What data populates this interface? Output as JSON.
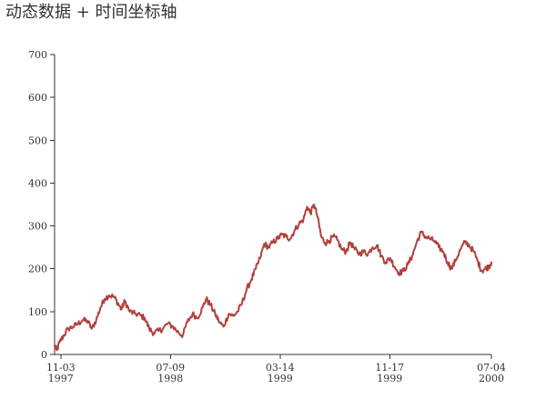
{
  "chart_data": {
    "type": "line",
    "title": "动态数据 + 时间坐标轴",
    "subtitle": "",
    "xlabel": "",
    "ylabel": "",
    "x_axis_type": "time",
    "xlim": [
      "1997-10-20",
      "2000-07-04"
    ],
    "ylim": [
      0,
      700
    ],
    "y_ticks": [
      0,
      100,
      200,
      300,
      400,
      500,
      600,
      700
    ],
    "x_ticks": [
      {
        "date": "1997-11-03",
        "line1": "11-03",
        "line2": "1997"
      },
      {
        "date": "1998-07-09",
        "line1": "07-09",
        "line2": "1998"
      },
      {
        "date": "1999-03-14",
        "line1": "03-14",
        "line2": "1999"
      },
      {
        "date": "1999-11-17",
        "line1": "11-17",
        "line2": "1999"
      },
      {
        "date": "2000-07-04",
        "line1": "07-04",
        "line2": "2000"
      }
    ],
    "grid": false,
    "legend": "none",
    "color": "#b0413e",
    "series": [
      {
        "values": [
          [
            "1997-10-20",
            20
          ],
          [
            "1997-10-25",
            10
          ],
          [
            "1997-11-01",
            30
          ],
          [
            "1997-11-10",
            45
          ],
          [
            "1997-11-20",
            60
          ],
          [
            "1997-12-01",
            65
          ],
          [
            "1997-12-12",
            72
          ],
          [
            "1997-12-22",
            80
          ],
          [
            "1998-01-03",
            78
          ],
          [
            "1998-01-12",
            60
          ],
          [
            "1998-01-22",
            80
          ],
          [
            "1998-02-01",
            110
          ],
          [
            "1998-02-10",
            130
          ],
          [
            "1998-02-20",
            138
          ],
          [
            "1998-03-03",
            135
          ],
          [
            "1998-03-12",
            120
          ],
          [
            "1998-03-20",
            105
          ],
          [
            "1998-03-28",
            125
          ],
          [
            "1998-04-08",
            100
          ],
          [
            "1998-04-20",
            95
          ],
          [
            "1998-05-01",
            92
          ],
          [
            "1998-05-12",
            85
          ],
          [
            "1998-05-22",
            60
          ],
          [
            "1998-06-01",
            50
          ],
          [
            "1998-06-12",
            55
          ],
          [
            "1998-06-22",
            60
          ],
          [
            "1998-07-02",
            72
          ],
          [
            "1998-07-15",
            65
          ],
          [
            "1998-07-28",
            50
          ],
          [
            "1998-08-06",
            45
          ],
          [
            "1998-08-16",
            75
          ],
          [
            "1998-08-28",
            95
          ],
          [
            "1998-09-08",
            85
          ],
          [
            "1998-09-20",
            110
          ],
          [
            "1998-09-28",
            130
          ],
          [
            "1998-10-08",
            115
          ],
          [
            "1998-10-18",
            95
          ],
          [
            "1998-10-28",
            75
          ],
          [
            "1998-11-06",
            65
          ],
          [
            "1998-11-18",
            95
          ],
          [
            "1998-11-28",
            90
          ],
          [
            "1998-12-08",
            100
          ],
          [
            "1998-12-18",
            120
          ],
          [
            "1998-12-28",
            150
          ],
          [
            "1999-01-08",
            175
          ],
          [
            "1999-01-18",
            200
          ],
          [
            "1999-01-28",
            225
          ],
          [
            "1999-02-06",
            258
          ],
          [
            "1999-02-16",
            250
          ],
          [
            "1999-02-26",
            262
          ],
          [
            "1999-03-08",
            270
          ],
          [
            "1999-03-18",
            280
          ],
          [
            "1999-03-28",
            275
          ],
          [
            "1999-04-06",
            270
          ],
          [
            "1999-04-16",
            290
          ],
          [
            "1999-04-26",
            305
          ],
          [
            "1999-05-06",
            315
          ],
          [
            "1999-05-14",
            345
          ],
          [
            "1999-05-22",
            330
          ],
          [
            "1999-05-30",
            350
          ],
          [
            "1999-06-07",
            320
          ],
          [
            "1999-06-15",
            275
          ],
          [
            "1999-06-24",
            260
          ],
          [
            "1999-07-03",
            265
          ],
          [
            "1999-07-12",
            275
          ],
          [
            "1999-07-21",
            268
          ],
          [
            "1999-08-01",
            245
          ],
          [
            "1999-08-10",
            240
          ],
          [
            "1999-08-20",
            262
          ],
          [
            "1999-08-30",
            245
          ],
          [
            "1999-09-09",
            235
          ],
          [
            "1999-09-19",
            240
          ],
          [
            "1999-09-29",
            235
          ],
          [
            "1999-10-09",
            250
          ],
          [
            "1999-10-19",
            255
          ],
          [
            "1999-10-29",
            230
          ],
          [
            "1999-11-08",
            215
          ],
          [
            "1999-11-18",
            225
          ],
          [
            "1999-11-28",
            205
          ],
          [
            "1999-12-08",
            190
          ],
          [
            "1999-12-18",
            195
          ],
          [
            "1999-12-28",
            210
          ],
          [
            "2000-01-07",
            230
          ],
          [
            "2000-01-17",
            262
          ],
          [
            "2000-01-27",
            285
          ],
          [
            "2000-02-06",
            275
          ],
          [
            "2000-02-16",
            270
          ],
          [
            "2000-02-26",
            265
          ],
          [
            "2000-03-07",
            250
          ],
          [
            "2000-03-17",
            240
          ],
          [
            "2000-03-27",
            215
          ],
          [
            "2000-04-05",
            200
          ],
          [
            "2000-04-15",
            222
          ],
          [
            "2000-04-25",
            245
          ],
          [
            "2000-05-05",
            262
          ],
          [
            "2000-05-15",
            255
          ],
          [
            "2000-05-25",
            240
          ],
          [
            "2000-06-04",
            215
          ],
          [
            "2000-06-12",
            195
          ],
          [
            "2000-06-20",
            200
          ],
          [
            "2000-06-28",
            205
          ],
          [
            "2000-07-04",
            215
          ]
        ]
      }
    ]
  }
}
